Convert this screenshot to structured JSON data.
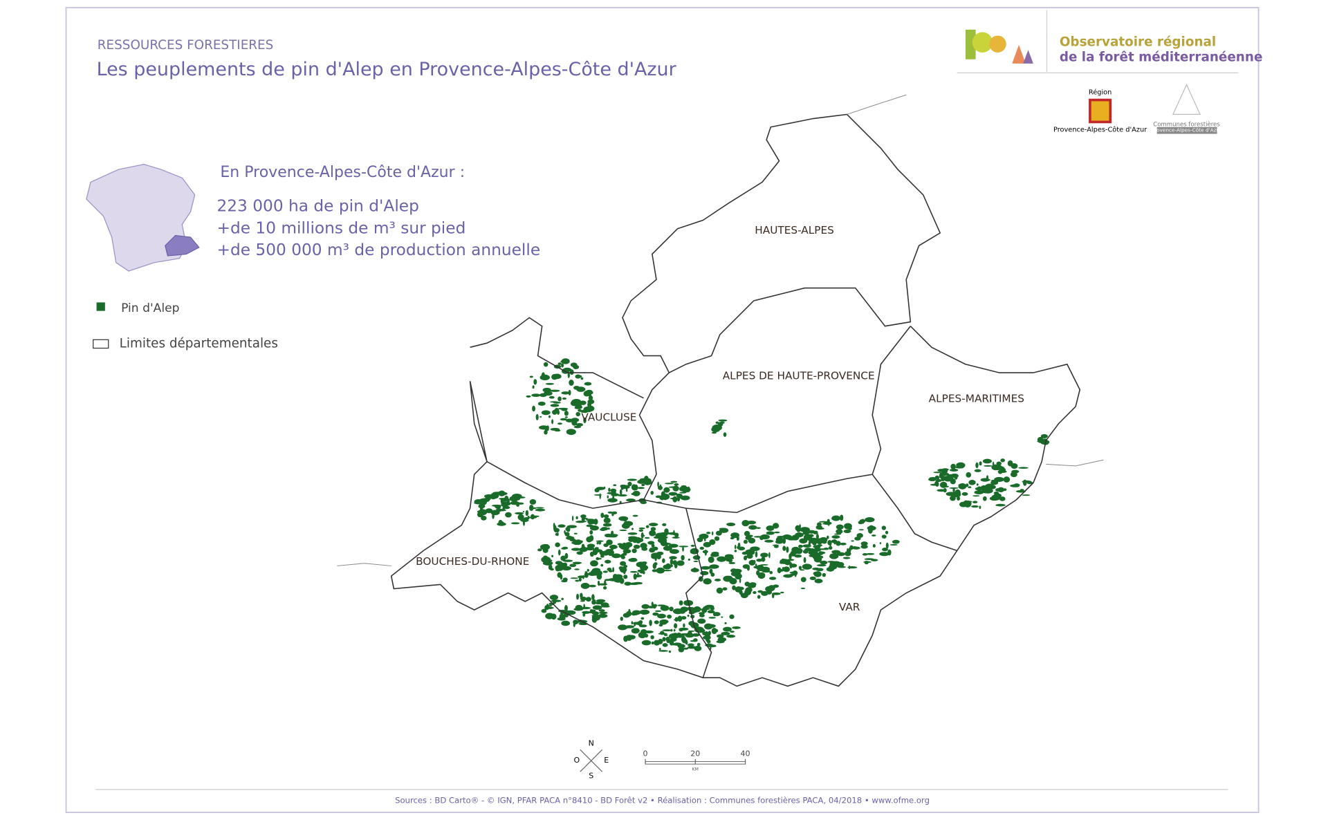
{
  "header": {
    "category": "RESSOURCES FORESTIERES",
    "title": "Les peuplements de pin d'Alep en Provence-Alpes-Côte d'Azur"
  },
  "logo": {
    "line1": "Observatoire régional",
    "line2": "de la forêt méditerranéenne",
    "region_label": "Région",
    "region_name": "Provence-Alpes-Côte d'Azur",
    "communes_label": "Communes forestières",
    "communes_name": "Provence-Alpes-Côte d'Azur"
  },
  "info": {
    "heading": "En Provence-Alpes-Côte d'Azur :",
    "lines": [
      "223 000 ha de pin d'Alep",
      "+de 10 millions de m³ sur pied",
      "+de 500 000 m³ de production annuelle"
    ]
  },
  "legend": {
    "items": [
      "Pin d'Alep",
      "Limites départementales"
    ]
  },
  "departments": [
    "HAUTES-ALPES",
    "ALPES DE HAUTE-PROVENCE",
    "ALPES-MARITIMES",
    "VAUCLUSE",
    "BOUCHES-DU-RHONE",
    "VAR"
  ],
  "compass": {
    "north": "N",
    "east": "E",
    "south": "S",
    "west": "O"
  },
  "scale_bar": {
    "ticks": [
      0,
      20,
      40
    ],
    "unit": "KM"
  },
  "footer": {
    "sources": "Sources : BD Carto® - © IGN, PFAR PACA n°8410 - BD Forêt v2 • Réalisation : Communes forestières PACA, 04/2018 • www.ofme.org"
  }
}
